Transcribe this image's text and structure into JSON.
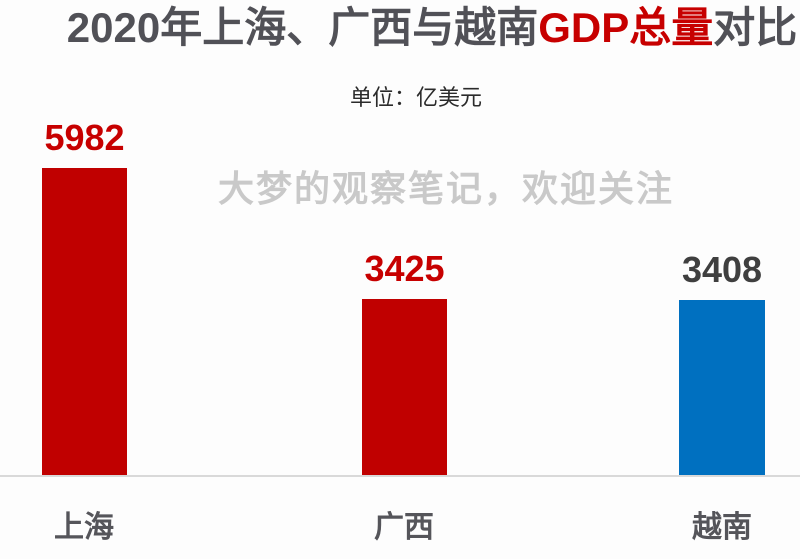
{
  "header": {
    "title_part_gray1": "2020年上海、广西与越南",
    "title_part_red": "GDP总量",
    "title_part_gray2": "对比",
    "subtitle": "单位：亿美元"
  },
  "watermark": "大梦的观察笔记，欢迎关注",
  "colors": {
    "title_gray": "#515157",
    "accent_red": "#c70000",
    "bar_red": "#c00000",
    "bar_blue": "#0070c0",
    "value_dark": "#3f3f3f",
    "watermark_gray": "#c9c9c9",
    "category_gray": "#55555a",
    "axis_line": "#d9d9d9",
    "background": "#fdfdfd"
  },
  "chart_data": {
    "type": "bar",
    "title": "2020年上海、广西与越南GDP总量对比",
    "subtitle": "单位：亿美元",
    "unit": "亿美元",
    "categories": [
      "上海",
      "广西",
      "越南"
    ],
    "values": [
      5982,
      3425,
      3408
    ],
    "bar_colors": [
      "#c00000",
      "#c00000",
      "#0070c0"
    ],
    "value_label_colors": [
      "#c70000",
      "#c70000",
      "#3f3f3f"
    ],
    "xlabel": "",
    "ylabel": "",
    "ylim": [
      0,
      6200
    ],
    "grid": false,
    "legend": false,
    "value_labels_shown": true
  }
}
